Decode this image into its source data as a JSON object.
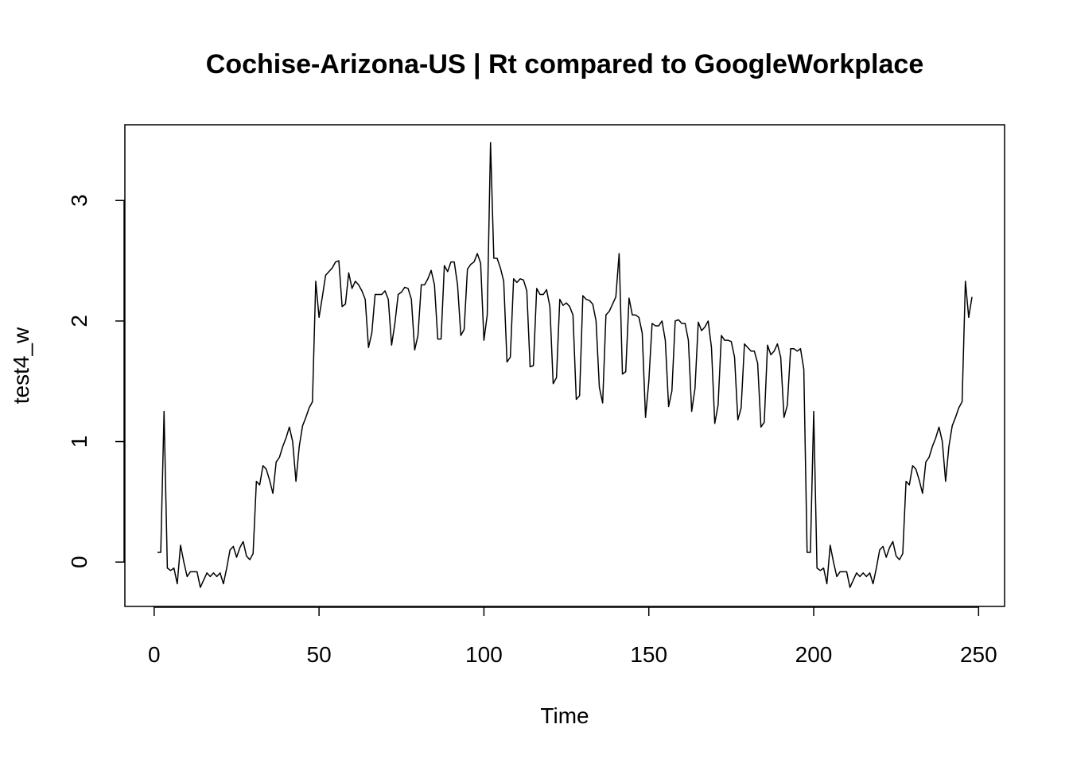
{
  "chart_data": {
    "type": "line",
    "title": "Cochise-Arizona-US | Rt compared to GoogleWorkplace",
    "x_label": "Time",
    "y_label": "test4_w",
    "x": [
      1,
      2,
      3,
      4,
      5,
      6,
      7,
      8,
      9,
      10,
      11,
      12,
      13,
      14,
      15,
      16,
      17,
      18,
      19,
      20,
      21,
      22,
      23,
      24,
      25,
      26,
      27,
      28,
      29,
      30,
      31,
      32,
      33,
      34,
      35,
      36,
      37,
      38,
      39,
      40,
      41,
      42,
      43,
      44,
      45,
      46,
      47,
      48,
      49,
      50,
      51,
      52,
      53,
      54,
      55,
      56,
      57,
      58,
      59,
      60,
      61,
      62,
      63,
      64,
      65,
      66,
      67,
      68,
      69,
      70,
      71,
      72,
      73,
      74,
      75,
      76,
      77,
      78,
      79,
      80,
      81,
      82,
      83,
      84,
      85,
      86,
      87,
      88,
      89,
      90,
      91,
      92,
      93,
      94,
      95,
      96,
      97,
      98,
      99,
      100,
      101,
      102,
      103,
      104,
      105,
      106,
      107,
      108,
      109,
      110,
      111,
      112,
      113,
      114,
      115,
      116,
      117,
      118,
      119,
      120,
      121,
      122,
      123,
      124,
      125,
      126,
      127,
      128,
      129,
      130,
      131,
      132,
      133,
      134,
      135,
      136,
      137,
      138,
      139,
      140,
      141,
      142,
      143,
      144,
      145,
      146,
      147,
      148,
      149,
      150,
      151,
      152,
      153,
      154,
      155,
      156,
      157,
      158,
      159,
      160,
      161,
      162,
      163,
      164,
      165,
      166,
      167,
      168,
      169,
      170,
      171,
      172,
      173,
      174,
      175,
      176,
      177,
      178,
      179,
      180,
      181,
      182,
      183,
      184,
      185,
      186,
      187,
      188,
      189,
      190,
      191,
      192,
      193,
      194,
      195,
      196,
      197,
      198,
      199,
      200,
      201,
      202,
      203,
      204,
      205,
      206,
      207,
      208,
      209,
      210,
      211,
      212,
      213,
      214,
      215,
      216,
      217,
      218,
      219,
      220,
      221,
      222,
      223,
      224,
      225,
      226,
      227,
      228,
      229,
      230,
      231,
      232,
      233,
      234,
      235,
      236,
      237,
      238,
      239,
      240,
      241,
      242,
      243,
      244,
      245,
      246,
      247,
      248
    ],
    "series": [
      {
        "name": "test4_w",
        "color": "#000000",
        "values": [
          0.08,
          0.08,
          1.25,
          -0.05,
          -0.07,
          -0.05,
          -0.18,
          0.14,
          0.0,
          -0.12,
          -0.08,
          -0.08,
          -0.08,
          -0.21,
          -0.15,
          -0.09,
          -0.12,
          -0.09,
          -0.12,
          -0.09,
          -0.18,
          -0.05,
          0.1,
          0.13,
          0.04,
          0.12,
          0.17,
          0.05,
          0.02,
          0.07,
          0.67,
          0.64,
          0.8,
          0.77,
          0.68,
          0.57,
          0.83,
          0.87,
          0.96,
          1.03,
          1.12,
          1.0,
          0.67,
          0.96,
          1.13,
          1.2,
          1.28,
          1.33,
          2.33,
          2.03,
          2.2,
          2.38,
          2.41,
          2.44,
          2.49,
          2.5,
          2.12,
          2.14,
          2.4,
          2.27,
          2.33,
          2.3,
          2.25,
          2.18,
          1.78,
          1.9,
          2.22,
          2.22,
          2.22,
          2.25,
          2.18,
          1.8,
          1.98,
          2.22,
          2.24,
          2.28,
          2.27,
          2.18,
          1.76,
          1.88,
          2.3,
          2.3,
          2.35,
          2.42,
          2.3,
          1.85,
          1.85,
          2.46,
          2.41,
          2.49,
          2.49,
          2.3,
          1.88,
          1.93,
          2.43,
          2.47,
          2.49,
          2.56,
          2.48,
          1.84,
          2.05,
          3.48,
          2.52,
          2.52,
          2.44,
          2.33,
          1.66,
          1.7,
          2.35,
          2.32,
          2.35,
          2.34,
          2.25,
          1.62,
          1.63,
          2.27,
          2.22,
          2.22,
          2.26,
          2.12,
          1.48,
          1.53,
          2.18,
          2.13,
          2.15,
          2.12,
          2.05,
          1.35,
          1.38,
          2.21,
          2.18,
          2.17,
          2.14,
          2.0,
          1.45,
          1.32,
          2.05,
          2.08,
          2.14,
          2.2,
          2.56,
          1.56,
          1.58,
          2.19,
          2.05,
          2.05,
          2.03,
          1.9,
          1.2,
          1.5,
          1.98,
          1.96,
          1.96,
          2.0,
          1.84,
          1.29,
          1.42,
          2.0,
          2.01,
          1.98,
          1.98,
          1.84,
          1.25,
          1.44,
          1.99,
          1.92,
          1.95,
          2.0,
          1.78,
          1.15,
          1.3,
          1.88,
          1.84,
          1.84,
          1.83,
          1.7,
          1.18,
          1.28,
          1.81,
          1.78,
          1.75,
          1.75,
          1.65,
          1.12,
          1.16,
          1.8,
          1.72,
          1.75,
          1.81,
          1.7,
          1.2,
          1.3,
          1.77,
          1.77,
          1.75,
          1.77,
          1.6,
          0.08,
          0.08,
          1.25,
          -0.05,
          -0.07,
          -0.05,
          -0.18,
          0.14,
          0.0,
          -0.12,
          -0.08,
          -0.08,
          -0.08,
          -0.21,
          -0.15,
          -0.09,
          -0.12,
          -0.09,
          -0.12,
          -0.09,
          -0.18,
          -0.05,
          0.1,
          0.13,
          0.04,
          0.12,
          0.17,
          0.05,
          0.02,
          0.07,
          0.67,
          0.64,
          0.8,
          0.77,
          0.68,
          0.57,
          0.83,
          0.87,
          0.96,
          1.03,
          1.12,
          1.0,
          0.67,
          0.96,
          1.13,
          1.2,
          1.28,
          1.33,
          2.33,
          2.03,
          2.2
        ]
      }
    ],
    "xlim": [
      -8.88,
      257.88
    ],
    "xticks": [
      0,
      50,
      100,
      150,
      200,
      250
    ],
    "ylim": [
      -0.368,
      3.628
    ],
    "yticks": [
      0,
      1,
      2,
      3
    ]
  }
}
